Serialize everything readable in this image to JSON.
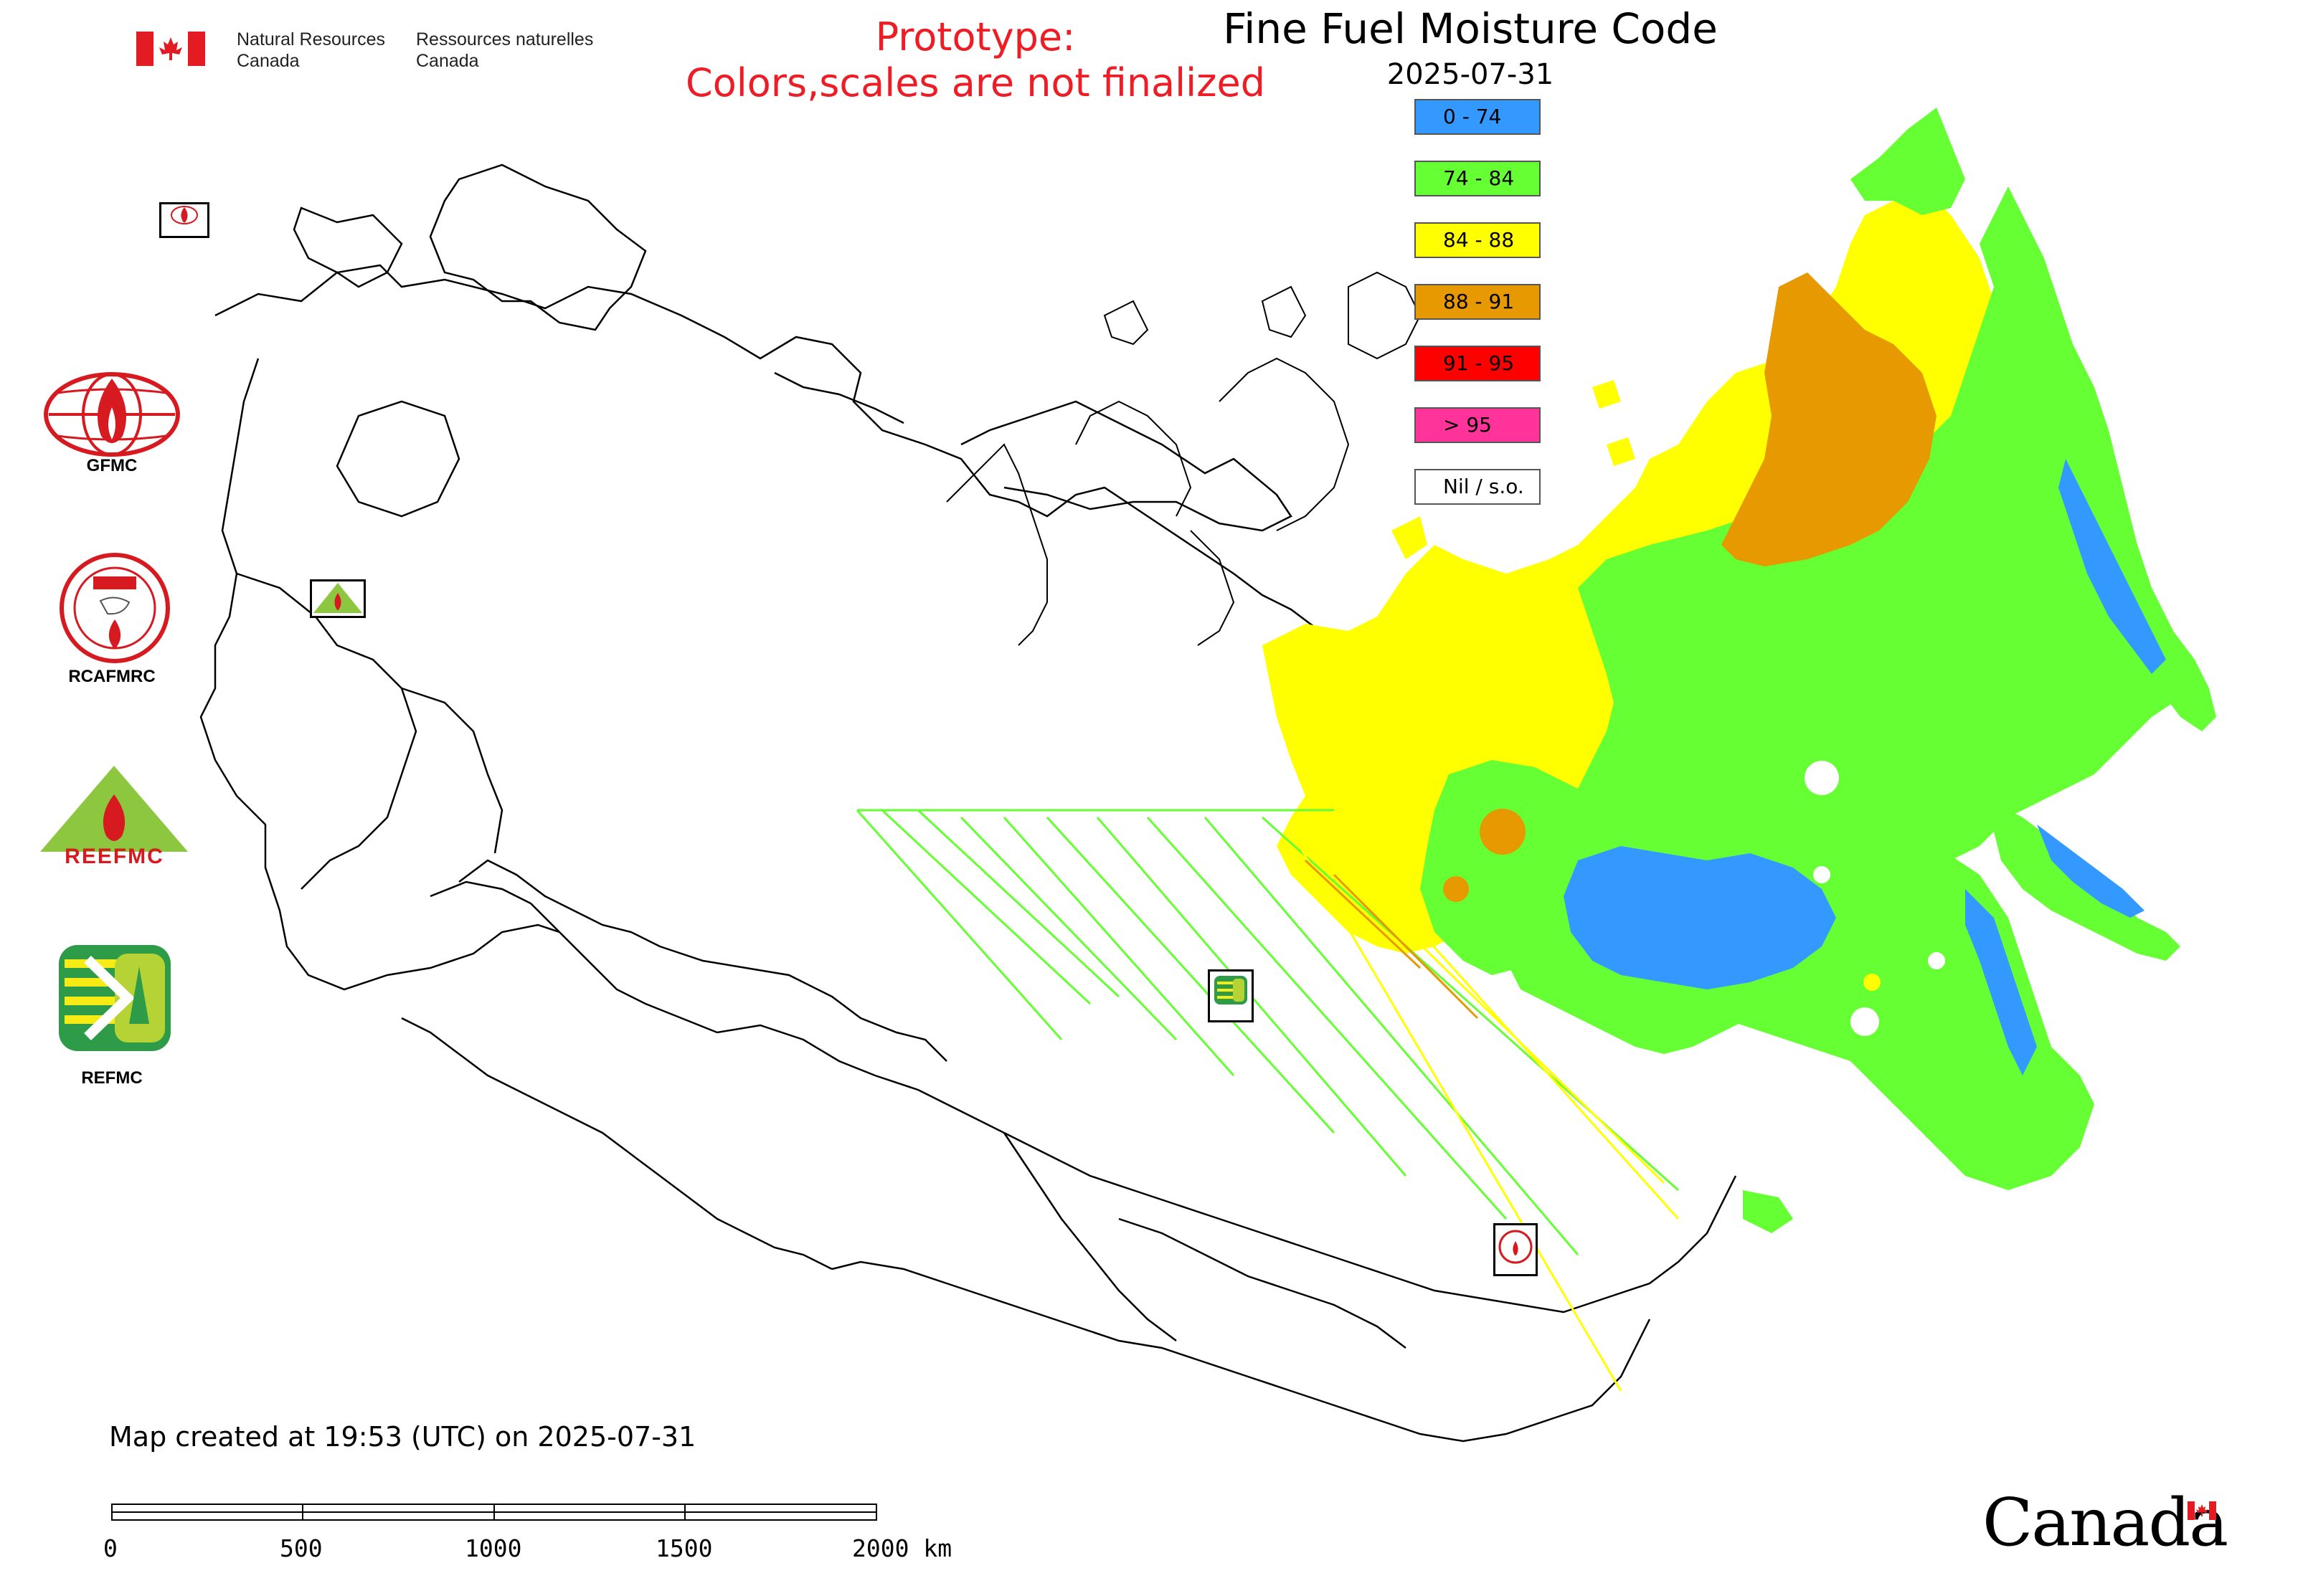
{
  "header": {
    "org_en_line1": "Natural Resources",
    "org_en_line2": "Canada",
    "org_fr_line1": "Ressources naturelles",
    "org_fr_line2": "Canada"
  },
  "prototype_notice": {
    "line1": "Prototype:",
    "line2": "Colors,scales are not finalized",
    "color": "#ee1c25"
  },
  "map": {
    "title": "Fine Fuel Moisture Code",
    "date": "2025-07-31"
  },
  "legend": {
    "items": [
      {
        "label": "0 - 74",
        "color": "#3399ff"
      },
      {
        "label": "74 - 84",
        "color": "#66ff33"
      },
      {
        "label": "84 - 88",
        "color": "#ffff00"
      },
      {
        "label": "88 - 91",
        "color": "#e69900"
      },
      {
        "label": "91 - 95",
        "color": "#ff0000"
      },
      {
        "label": "> 95",
        "color": "#ff3399"
      },
      {
        "label": "Nil / s.o.",
        "color": "#ffffff"
      }
    ]
  },
  "logos": [
    {
      "name": "GFMC",
      "label": "GFMC"
    },
    {
      "name": "RCAFMRC",
      "label": "RCAFMRC"
    },
    {
      "name": "REEFMC",
      "label": "REEFMC",
      "wordmark": "REEFMC"
    },
    {
      "name": "REFMC",
      "label": "REFMC"
    }
  ],
  "map_markers": {
    "gfmc_small": "GFMC",
    "reefmc_small": "REEFMC",
    "refmc_small": "REFMC",
    "rcafmrc_small": "RCAFMRC"
  },
  "footer": {
    "created_text": "Map created at 19:53 (UTC) on 2025-07-31",
    "scale_ticks": [
      "0",
      "500",
      "1000",
      "1500",
      "2000 km"
    ],
    "canada_wordmark": "Canada"
  }
}
